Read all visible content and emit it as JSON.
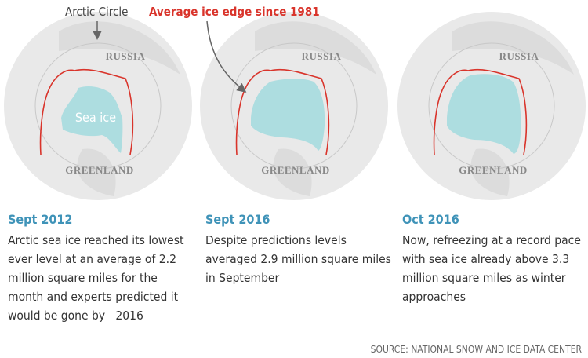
{
  "annotations": {
    "arctic_circle": "Arctic Circle",
    "ice_edge": "Average ice edge since 1981"
  },
  "panels": [
    {
      "map_labels": {
        "russia": "RUSSIA",
        "greenland": "GREENLAND",
        "sea_ice": "Sea ice"
      },
      "date": "Sept 2012",
      "text": "Arctic sea ice reached its lowest ever level at an average of 2.2 million square miles for the month and experts predicted it would be gone by   2016"
    },
    {
      "map_labels": {
        "russia": "RUSSIA",
        "greenland": "GREENLAND"
      },
      "date": "Sept 2016",
      "text": "Despite predictions levels averaged 2.9 million square miles in September"
    },
    {
      "map_labels": {
        "russia": "RUSSIA",
        "greenland": "GREENLAND"
      },
      "date": "Oct 2016",
      "text": "Now, refreezing at a record pace with sea ice already above 3.3 million square miles as winter approaches"
    }
  ],
  "source": "SOURCE: NATIONAL SNOW AND ICE DATA CENTER"
}
